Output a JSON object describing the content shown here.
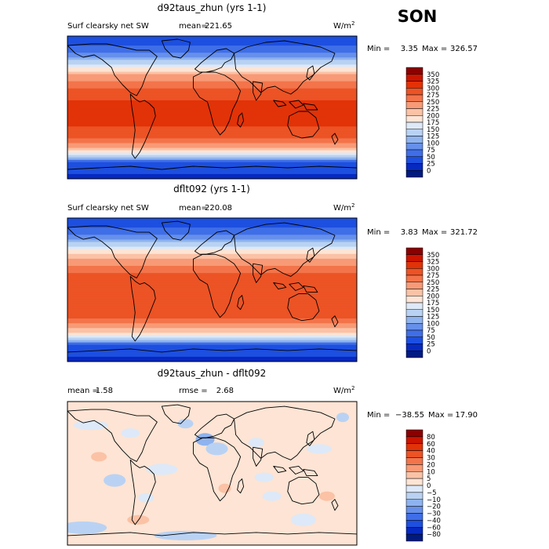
{
  "season": "SON",
  "chart_data": [
    {
      "type": "heatmap",
      "title": "d92taus_zhun (yrs 1-1)",
      "variable": "Surf clearsky net SW",
      "mean_label": "mean=",
      "mean": "221.65",
      "units": "W/m",
      "units_sup": "2",
      "min_label": "Min =",
      "min": "3.35",
      "max_label": "Max =",
      "max": "326.57",
      "colorbar_levels": [
        "350",
        "325",
        "300",
        "275",
        "250",
        "225",
        "200",
        "175",
        "150",
        "125",
        "100",
        "75",
        "50",
        "25",
        "0"
      ],
      "colorbar_colors": [
        "#8b0000",
        "#cc1400",
        "#e23208",
        "#ec5325",
        "#f3744a",
        "#f89a76",
        "#fbc2a6",
        "#fde4d4",
        "#dde9f8",
        "#b9d2f3",
        "#8eb3ee",
        "#6690ea",
        "#3f6ee8",
        "#1d4fe0",
        "#0629c2",
        "#001a80"
      ],
      "lat_profile": [
        [
          90,
          25
        ],
        [
          80,
          40
        ],
        [
          70,
          75
        ],
        [
          60,
          120
        ],
        [
          50,
          180
        ],
        [
          40,
          230
        ],
        [
          30,
          265
        ],
        [
          20,
          285
        ],
        [
          10,
          300
        ],
        [
          0,
          305
        ],
        [
          -10,
          308
        ],
        [
          -20,
          305
        ],
        [
          -30,
          295
        ],
        [
          -40,
          270
        ],
        [
          -50,
          225
        ],
        [
          -60,
          160
        ],
        [
          -65,
          100
        ],
        [
          -70,
          40
        ],
        [
          -90,
          20
        ]
      ]
    },
    {
      "type": "heatmap",
      "title": "dflt092 (yrs 1-1)",
      "variable": "Surf clearsky net SW",
      "mean_label": "mean=",
      "mean": "220.08",
      "units": "W/m",
      "units_sup": "2",
      "min_label": "Min =",
      "min": "3.83",
      "max_label": "Max =",
      "max": "321.72",
      "colorbar_levels": [
        "350",
        "325",
        "300",
        "275",
        "250",
        "225",
        "200",
        "175",
        "150",
        "125",
        "100",
        "75",
        "50",
        "25",
        "0"
      ],
      "colorbar_colors": [
        "#8b0000",
        "#cc1400",
        "#e23208",
        "#ec5325",
        "#f3744a",
        "#f89a76",
        "#fbc2a6",
        "#fde4d4",
        "#dde9f8",
        "#b9d2f3",
        "#8eb3ee",
        "#6690ea",
        "#3f6ee8",
        "#1d4fe0",
        "#0629c2",
        "#001a80"
      ],
      "lat_profile": [
        [
          90,
          25
        ],
        [
          80,
          40
        ],
        [
          70,
          75
        ],
        [
          60,
          120
        ],
        [
          50,
          175
        ],
        [
          40,
          220
        ],
        [
          30,
          255
        ],
        [
          20,
          275
        ],
        [
          10,
          290
        ],
        [
          0,
          298
        ],
        [
          -10,
          300
        ],
        [
          -20,
          298
        ],
        [
          -30,
          288
        ],
        [
          -40,
          265
        ],
        [
          -50,
          220
        ],
        [
          -60,
          160
        ],
        [
          -65,
          100
        ],
        [
          -70,
          40
        ],
        [
          -90,
          20
        ]
      ]
    },
    {
      "type": "heatmap",
      "title": "d92taus_zhun - dflt092",
      "mean_label": "mean =",
      "mean": "1.58",
      "rmse_label": "rmse =",
      "rmse": "2.68",
      "units": "W/m",
      "units_sup": "2",
      "min_label": "Min =",
      "min": "−38.55",
      "max_label": "Max =",
      "max": "17.90",
      "colorbar_levels": [
        "80",
        "60",
        "40",
        "30",
        "20",
        "10",
        "5",
        "0",
        "−5",
        "−10",
        "−20",
        "−30",
        "−40",
        "−60",
        "−80"
      ],
      "colorbar_colors": [
        "#8b0000",
        "#cc1400",
        "#e23208",
        "#ec5325",
        "#f3744a",
        "#f89a76",
        "#fbc2a6",
        "#fde4d4",
        "#dde9f8",
        "#b9d2f3",
        "#8eb3ee",
        "#6690ea",
        "#3f6ee8",
        "#1d4fe0",
        "#0629c2",
        "#001a80"
      ],
      "background_value": 2.5
    }
  ]
}
